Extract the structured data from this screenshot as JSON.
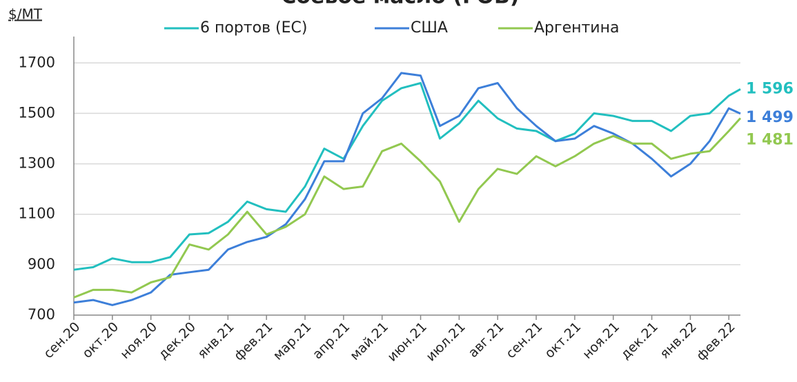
{
  "chart_data": {
    "type": "line",
    "title": "Соевое масло (FOB)",
    "y_label": "$/MT",
    "x": [
      0,
      0.5,
      1,
      1.5,
      2,
      2.5,
      3,
      3.5,
      4,
      4.5,
      5,
      5.5,
      6,
      6.5,
      7,
      7.5,
      8,
      8.5,
      9,
      9.5,
      10,
      10.5,
      11,
      11.5,
      12,
      12.5,
      13,
      13.5,
      14,
      14.5,
      15,
      15.5,
      16,
      16.5,
      17,
      17.3
    ],
    "xlim": [
      0,
      17.3
    ],
    "xticks": [
      {
        "value": 0,
        "label": "сен.20"
      },
      {
        "value": 1,
        "label": "окт.20"
      },
      {
        "value": 2,
        "label": "ноя.20"
      },
      {
        "value": 3,
        "label": "дек.20"
      },
      {
        "value": 4,
        "label": "янв.21"
      },
      {
        "value": 5,
        "label": "фев.21"
      },
      {
        "value": 6,
        "label": "мар.21"
      },
      {
        "value": 7,
        "label": "апр.21"
      },
      {
        "value": 8,
        "label": "май.21"
      },
      {
        "value": 9,
        "label": "июн.21"
      },
      {
        "value": 10,
        "label": "июл.21"
      },
      {
        "value": 11,
        "label": "авг.21"
      },
      {
        "value": 12,
        "label": "сен.21"
      },
      {
        "value": 13,
        "label": "окт.21"
      },
      {
        "value": 14,
        "label": "ноя.21"
      },
      {
        "value": 15,
        "label": "дек.21"
      },
      {
        "value": 16,
        "label": "янв.22"
      },
      {
        "value": 17,
        "label": "фев.22"
      }
    ],
    "ylim": [
      700,
      1750
    ],
    "yticks": [
      700,
      900,
      1100,
      1300,
      1500,
      1700
    ],
    "grid": true,
    "legend": "top",
    "series": [
      {
        "name": "6 портов (ЕС)",
        "color": "#22bfbf",
        "values": [
          880,
          890,
          925,
          910,
          910,
          930,
          1020,
          1025,
          1070,
          1150,
          1120,
          1110,
          1210,
          1360,
          1320,
          1450,
          1550,
          1600,
          1620,
          1400,
          1460,
          1550,
          1480,
          1440,
          1430,
          1390,
          1420,
          1500,
          1490,
          1470,
          1470,
          1430,
          1490,
          1500,
          1570,
          1596
        ],
        "value_labels": [
          null,
          null,
          null,
          null,
          null,
          null,
          null,
          null,
          null,
          null,
          null,
          null,
          null,
          null,
          null,
          null,
          null,
          null,
          null,
          null,
          null,
          null,
          null,
          null,
          null,
          null,
          null,
          null,
          null,
          null,
          null,
          null,
          null,
          null,
          null,
          "1 596"
        ]
      },
      {
        "name": "США",
        "color": "#3d7fd9",
        "values": [
          750,
          760,
          740,
          760,
          790,
          860,
          870,
          880,
          960,
          990,
          1010,
          1060,
          1160,
          1310,
          1310,
          1500,
          1560,
          1660,
          1650,
          1450,
          1490,
          1600,
          1620,
          1520,
          1450,
          1390,
          1400,
          1450,
          1420,
          1380,
          1320,
          1250,
          1300,
          1390,
          1520,
          1499
        ],
        "value_labels": [
          null,
          null,
          null,
          null,
          null,
          null,
          null,
          null,
          null,
          null,
          null,
          null,
          null,
          null,
          null,
          null,
          null,
          null,
          null,
          null,
          null,
          null,
          null,
          null,
          null,
          null,
          null,
          null,
          null,
          null,
          null,
          null,
          null,
          null,
          null,
          "1 499"
        ]
      },
      {
        "name": "Аргентина",
        "color": "#92c850",
        "values": [
          770,
          800,
          800,
          790,
          830,
          850,
          980,
          960,
          1020,
          1110,
          1020,
          1050,
          1100,
          1250,
          1200,
          1210,
          1350,
          1380,
          1310,
          1230,
          1070,
          1200,
          1280,
          1260,
          1330,
          1290,
          1330,
          1380,
          1410,
          1380,
          1380,
          1320,
          1340,
          1350,
          1430,
          1481
        ],
        "value_labels": [
          null,
          null,
          null,
          null,
          null,
          null,
          null,
          null,
          null,
          null,
          null,
          null,
          null,
          null,
          null,
          null,
          null,
          null,
          null,
          null,
          null,
          null,
          null,
          null,
          null,
          null,
          null,
          null,
          null,
          null,
          null,
          null,
          null,
          null,
          null,
          "1 481"
        ]
      }
    ]
  }
}
